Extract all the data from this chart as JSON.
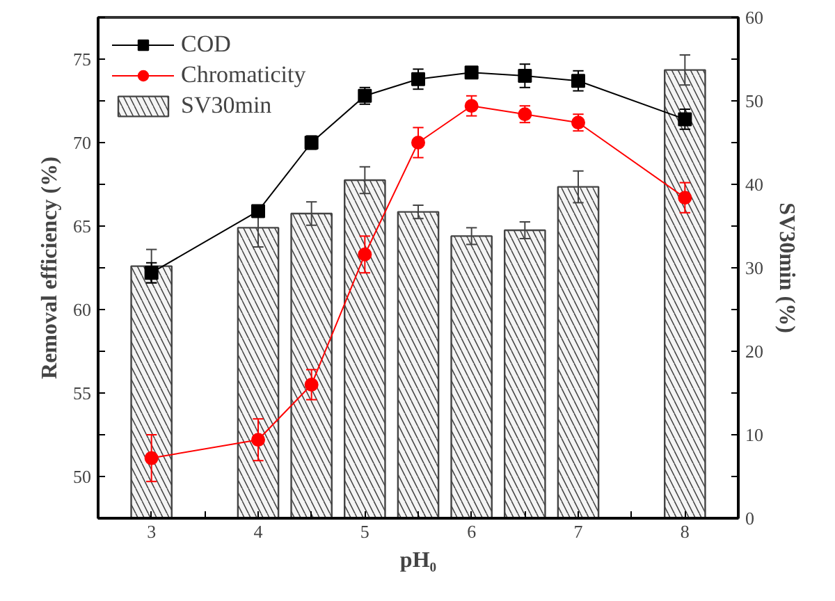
{
  "chart_data": {
    "type": "line",
    "xlabel": "pH₀",
    "ylabel": "Removal efficiency (%)",
    "y2label": "SV30min (%)",
    "x": [
      3,
      4,
      4.5,
      5,
      5.5,
      6,
      6.5,
      7,
      8
    ],
    "xlim": [
      2.5,
      8.5
    ],
    "xticks": [
      3,
      {
        "value": 3.5,
        "label": null
      },
      4,
      {
        "value": 4.5,
        "label": null
      },
      5,
      {
        "value": 5.5,
        "label": null
      },
      6,
      {
        "value": 6.5,
        "label": null
      },
      7,
      {
        "value": 7.5,
        "label": null
      },
      8
    ],
    "ylim": [
      47.5,
      77.5
    ],
    "yticks": [
      {
        "value": 47.5,
        "label": null
      },
      50,
      {
        "value": 52.5,
        "label": null
      },
      55,
      {
        "value": 57.5,
        "label": null
      },
      60,
      {
        "value": 62.5,
        "label": null
      },
      65,
      {
        "value": 67.5,
        "label": null
      },
      70,
      {
        "value": 72.5,
        "label": null
      },
      75,
      {
        "value": 77.5,
        "label": null
      }
    ],
    "y2lim": [
      0,
      60
    ],
    "y2ticks": [
      0,
      {
        "value": 5,
        "label": null
      },
      10,
      {
        "value": 15,
        "label": null
      },
      20,
      {
        "value": 25,
        "label": null
      },
      30,
      {
        "value": 35,
        "label": null
      },
      40,
      {
        "value": 45,
        "label": null
      },
      50,
      {
        "value": 55,
        "label": null
      },
      60
    ],
    "series": [
      {
        "name": "SV30min",
        "type": "bar",
        "axis": "y2",
        "color": "#444444",
        "values": [
          30.2,
          34.8,
          36.5,
          40.5,
          36.7,
          33.8,
          34.5,
          39.7,
          53.7
        ],
        "errors": [
          2.0,
          2.3,
          1.4,
          1.6,
          0.8,
          1.0,
          1.0,
          1.9,
          1.8
        ]
      },
      {
        "name": "COD",
        "color": "#000000",
        "marker": "square",
        "values": [
          62.2,
          65.9,
          70.0,
          72.8,
          73.8,
          74.2,
          74.0,
          73.7,
          71.4
        ],
        "errors": [
          0.6,
          0.3,
          0.4,
          0.5,
          0.6,
          0.2,
          0.7,
          0.6,
          0.6
        ]
      },
      {
        "name": "Chromaticity",
        "color": "#ff0000",
        "marker": "circle",
        "values": [
          51.1,
          52.2,
          55.5,
          63.3,
          70.0,
          72.2,
          71.7,
          71.2,
          66.7
        ],
        "errors": [
          1.4,
          1.25,
          0.9,
          1.1,
          0.9,
          0.6,
          0.5,
          0.5,
          0.9
        ]
      }
    ],
    "grid": false,
    "legend": "top left"
  }
}
